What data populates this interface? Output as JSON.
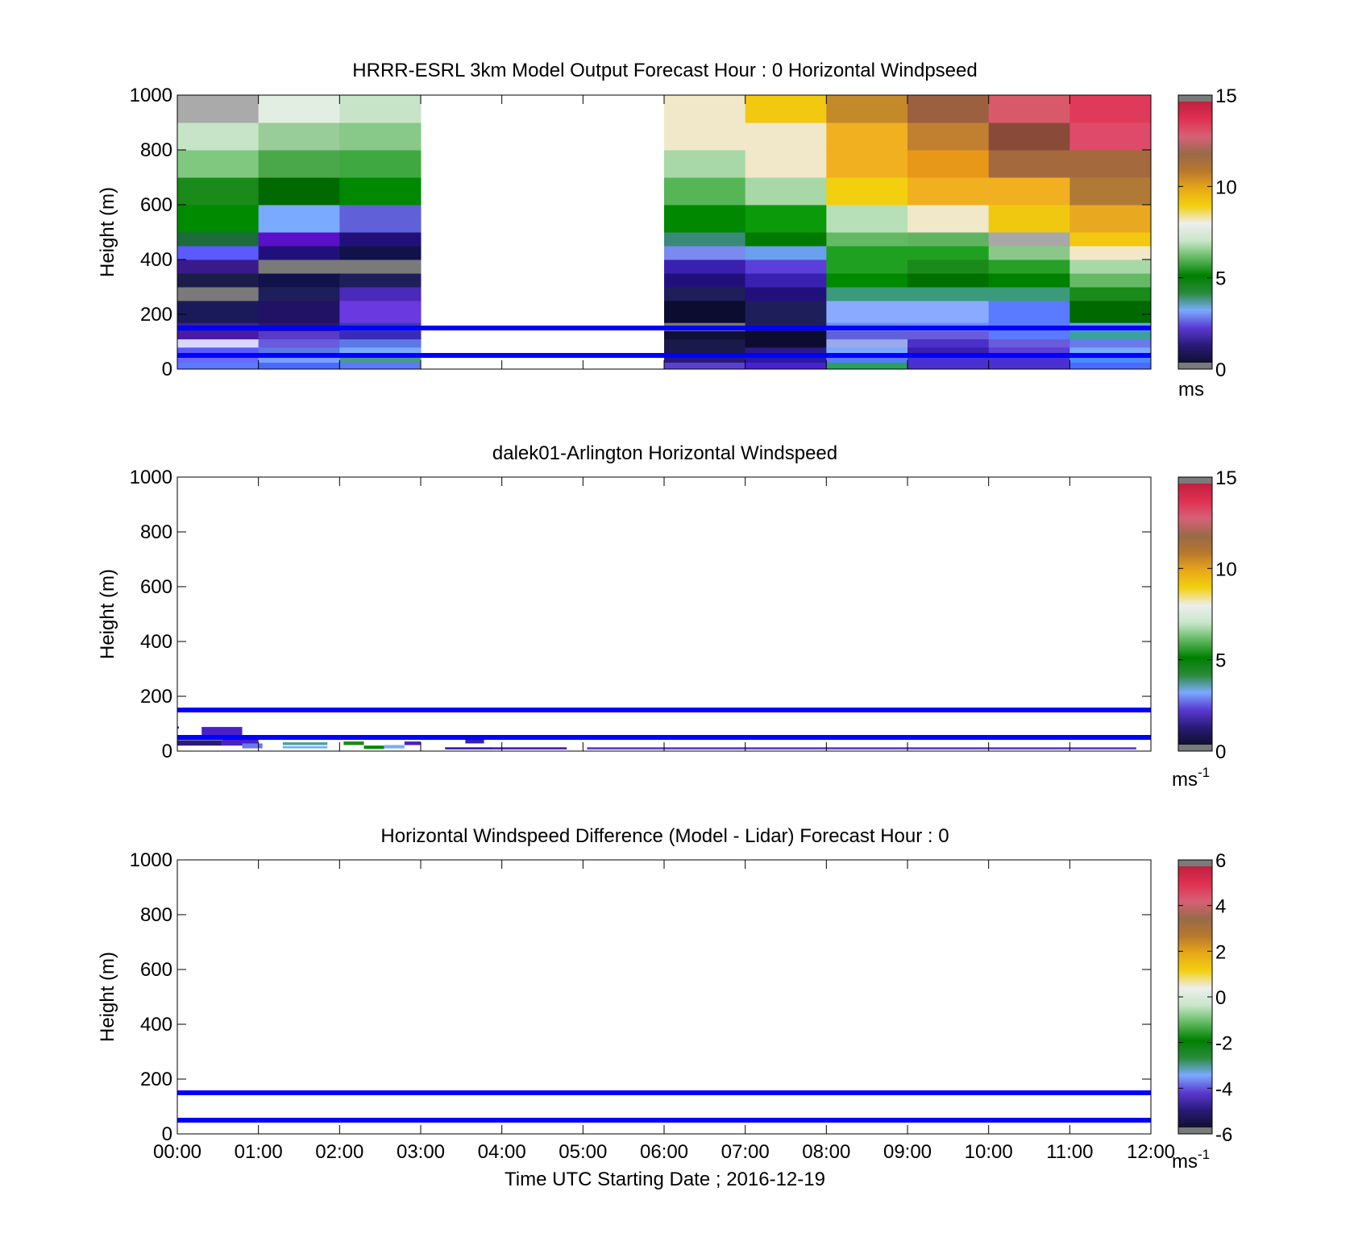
{
  "chart_data": [
    {
      "type": "heatmap",
      "title": "HRRR-ESRL 3km Model Output   Forecast Hour : 0 Horizontal Windpseed",
      "ylabel": "Height (m)",
      "xlim": [
        0,
        12
      ],
      "ylim": [
        0,
        1000
      ],
      "yticks": [
        0,
        200,
        400,
        600,
        800,
        1000
      ],
      "colorbar": {
        "ticks": [
          0,
          5,
          10,
          15
        ],
        "unit": "ms",
        "unit_sup": "",
        "range": [
          0,
          15
        ]
      },
      "reference_lines_m": [
        50,
        150
      ],
      "reference_line_color": "#0000ff",
      "hour_starts": [
        0,
        1,
        2,
        6,
        7,
        8,
        9,
        10,
        11
      ],
      "level_edges_m": [
        0,
        25,
        50,
        80,
        110,
        140,
        170,
        250,
        300,
        350,
        400,
        450,
        500,
        600,
        700,
        800,
        900,
        1000
      ],
      "colors": [
        [
          "#5a7aff",
          "#6a6aff",
          "#5a5aff",
          "#d8d8ff",
          "#4a1aa0",
          "#3a2290",
          "#1a1a5a",
          "#7a7a7a",
          "#1c1c4a",
          "#3a1a8a",
          "#5a5aff",
          "#1c6c3c",
          "#008a00",
          "#1a8a1a",
          "#80c880",
          "#c8e4c8",
          "#aaaaaa",
          "#f0e8c8"
        ],
        [
          "#4a6aff",
          "#7aa0ff",
          "#5a7ae8",
          "#6a5adc",
          "#5a3ac8",
          "#2a1a6c",
          "#221266",
          "#1e1e5a",
          "#12124a",
          "#7a7a7a",
          "#22107a",
          "#5a10c8",
          "#7aaaff",
          "#006a00",
          "#4aa84a",
          "#98cc98",
          "#e2eee2",
          "#eeeee8"
        ],
        [
          "#5a7aff",
          "#4a9a8a",
          "#7aaaff",
          "#5a7ae8",
          "#3a2ab8",
          "#3a3abe",
          "#6a3ae0",
          "#4a2ab8",
          "#1e1e5a",
          "#7a7a7a",
          "#12124a",
          "#22107a",
          "#6060d8",
          "#008800",
          "#40a840",
          "#88c888",
          "#c8e4c8",
          "#c8e4c8"
        ],
        [
          "#5a40d0",
          "#2a1a7a",
          "#1a1a4a",
          "#1a1a4a",
          "#101038",
          "#7a7a7a",
          "#0c0c30",
          "#1e1e5a",
          "#22107a",
          "#3a20b0",
          "#7a8aee",
          "#3a8a7a",
          "#008800",
          "#56b656",
          "#a8d8a8",
          "#f0e8c8",
          "#f0e8c8",
          "#f2d030"
        ],
        [
          "#4a20d0",
          "#2a1aa0",
          "#2a1a8a",
          "#0c0c30",
          "#0c0c30",
          "#1e1e5a",
          "#1e1e5a",
          "#22107a",
          "#3a20b0",
          "#5a40d8",
          "#6aa0ee",
          "#007a00",
          "#0a9a0a",
          "#a8d8a8",
          "#f0e8c8",
          "#f0e8c8",
          "#f2c810",
          "#f0b020"
        ],
        [
          "#2aa060",
          "#5a7aff",
          "#7aaaff",
          "#9aa8ee",
          "#6060d8",
          "#6a8aff",
          "#8aaaff",
          "#3a9a7a",
          "#008a00",
          "#20a020",
          "#20a020",
          "#64ba64",
          "#b8e0b8",
          "#f2d010",
          "#f0b020",
          "#f0b020",
          "#c48a2a",
          "#b07a36"
        ],
        [
          "#4a30d0",
          "#4a30d0",
          "#3a20b0",
          "#4a30c8",
          "#6a5adc",
          "#6a8aff",
          "#8aaaff",
          "#3a9a7a",
          "#007000",
          "#1a8a1a",
          "#20a020",
          "#60b460",
          "#f0e8c8",
          "#f0b020",
          "#e89818",
          "#c08030",
          "#9a6040",
          "#9a6040"
        ],
        [
          "#4a30d0",
          "#4a30d0",
          "#5a40d8",
          "#6a5adc",
          "#5a7aff",
          "#5a7aff",
          "#5a7aff",
          "#3a9a7a",
          "#008000",
          "#28a028",
          "#8ac88a",
          "#a8a8a8",
          "#f0c810",
          "#f0b020",
          "#a46a3e",
          "#8a4a3a",
          "#d85a6a",
          "#e05a70"
        ],
        [
          "#4a6aff",
          "#4a8aff",
          "#7aaaff",
          "#6a7aee",
          "#3aa0a0",
          "#6aa0ee",
          "#006a00",
          "#1a8a1a",
          "#64ba64",
          "#a8d8a8",
          "#f2e8c8",
          "#f2c810",
          "#e8a820",
          "#b07a36",
          "#a46a3e",
          "#e04a6a",
          "#e03a5a",
          "#d83050"
        ]
      ]
    },
    {
      "type": "heatmap",
      "title": "dalek01-Arlington  Horizontal Windspeed",
      "ylabel": "Height (m)",
      "xlim": [
        0,
        12
      ],
      "ylim": [
        0,
        1000
      ],
      "yticks": [
        0,
        200,
        400,
        600,
        800,
        1000
      ],
      "colorbar": {
        "ticks": [
          0,
          5,
          10,
          15
        ],
        "unit": "ms",
        "unit_sup": "-1",
        "range": [
          0,
          15
        ]
      },
      "reference_lines_m": [
        50,
        150
      ],
      "reference_line_color": "#0000ff",
      "cells": [
        {
          "t0": 0.0,
          "t1": 0.02,
          "h0": 82,
          "h1": 90,
          "color": "#3a20b0"
        },
        {
          "t0": 0.3,
          "t1": 0.8,
          "h0": 58,
          "h1": 88,
          "color": "#4a20c8"
        },
        {
          "t0": 0.0,
          "t1": 0.55,
          "h0": 20,
          "h1": 40,
          "color": "#2a1a7a"
        },
        {
          "t0": 0.55,
          "t1": 1.0,
          "h0": 20,
          "h1": 50,
          "color": "#4a20c8"
        },
        {
          "t0": 0.8,
          "t1": 1.05,
          "h0": 10,
          "h1": 28,
          "color": "#6a7aee"
        },
        {
          "t0": 1.3,
          "t1": 1.85,
          "h0": 10,
          "h1": 18,
          "color": "#7aaaff"
        },
        {
          "t0": 1.3,
          "t1": 1.85,
          "h0": 22,
          "h1": 32,
          "color": "#4aa0a0"
        },
        {
          "t0": 2.05,
          "t1": 2.3,
          "h0": 22,
          "h1": 35,
          "color": "#1a8a1a"
        },
        {
          "t0": 2.3,
          "t1": 2.55,
          "h0": 8,
          "h1": 20,
          "color": "#008800"
        },
        {
          "t0": 2.55,
          "t1": 2.8,
          "h0": 10,
          "h1": 22,
          "color": "#7aaaff"
        },
        {
          "t0": 2.8,
          "t1": 3.0,
          "h0": 22,
          "h1": 35,
          "color": "#4a20c8"
        },
        {
          "t0": 3.3,
          "t1": 3.9,
          "h0": 6,
          "h1": 14,
          "color": "#3a20b0"
        },
        {
          "t0": 3.55,
          "t1": 3.78,
          "h0": 28,
          "h1": 42,
          "color": "#3a20b0"
        },
        {
          "t0": 3.9,
          "t1": 4.8,
          "h0": 6,
          "h1": 14,
          "color": "#4a20c8"
        },
        {
          "t0": 5.05,
          "t1": 11.82,
          "h0": 6,
          "h1": 14,
          "color": "#5a40d8"
        }
      ]
    },
    {
      "type": "heatmap",
      "title": "Horizontal Windspeed Difference (Model - Lidar) Forecast Hour : 0",
      "ylabel": "Height (m)",
      "xlabel": "Time UTC  Starting Date ; 2016-12-19",
      "xlim": [
        0,
        12
      ],
      "ylim": [
        0,
        1000
      ],
      "yticks": [
        0,
        200,
        400,
        600,
        800,
        1000
      ],
      "xticks": [
        "00:00",
        "01:00",
        "02:00",
        "03:00",
        "04:00",
        "05:00",
        "06:00",
        "07:00",
        "08:00",
        "09:00",
        "10:00",
        "11:00",
        "12:00"
      ],
      "colorbar": {
        "ticks": [
          -6,
          -4,
          -2,
          0,
          2,
          4,
          6
        ],
        "unit": "ms",
        "unit_sup": "-1",
        "range": [
          -6,
          6
        ]
      },
      "reference_lines_m": [
        50,
        150
      ],
      "reference_line_color": "#0000ff"
    }
  ],
  "colormap": [
    "#101030",
    "#2a1a7a",
    "#5a3ad0",
    "#7aaaff",
    "#2a8a3a",
    "#008000",
    "#60b860",
    "#c8e6c8",
    "#eeeeee",
    "#f2d010",
    "#e8a818",
    "#b8782e",
    "#986a48",
    "#d86076",
    "#e03050",
    "#c02040"
  ]
}
